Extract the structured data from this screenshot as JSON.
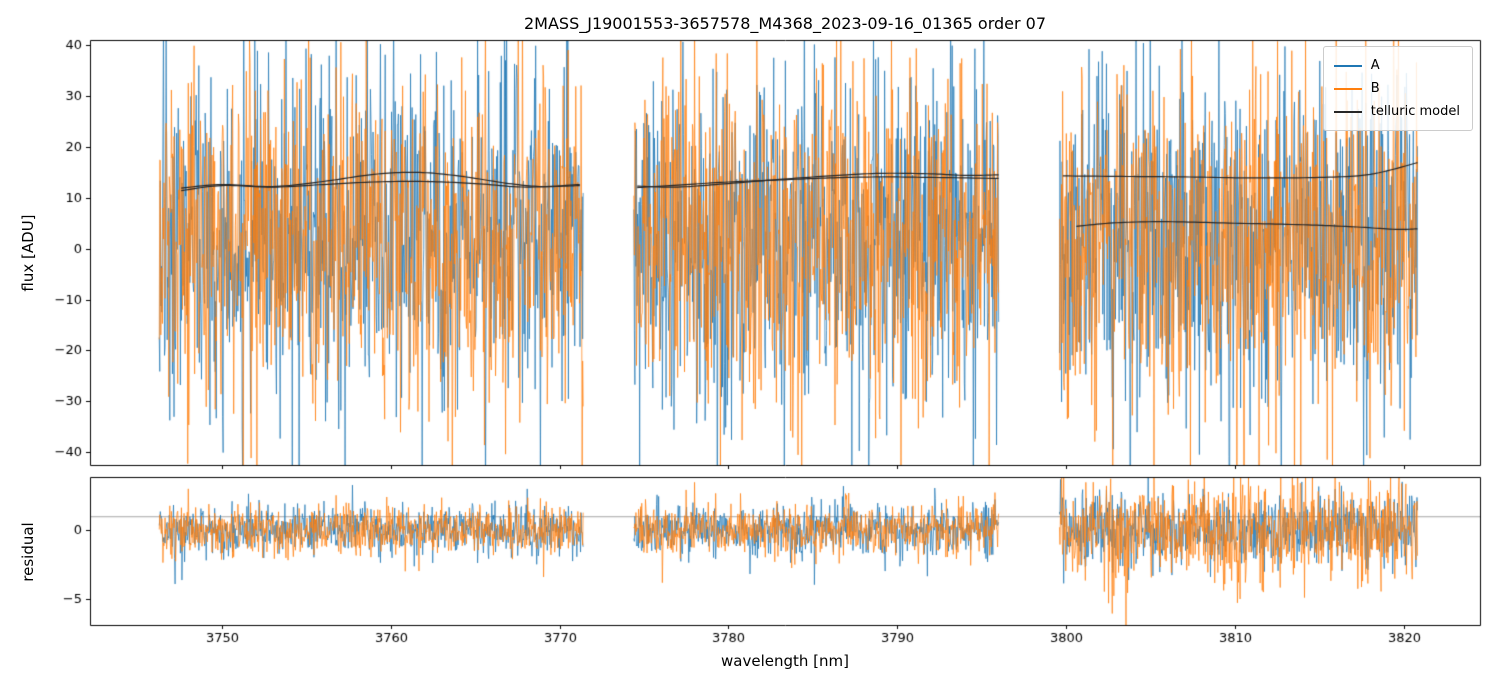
{
  "chart_data": {
    "type": "line",
    "title": "2MASS_J19001553-3657578_M4368_2023-09-16_01365  order 07",
    "xlabel": "wavelength [nm]",
    "xlim": [
      3742.2,
      3824.5
    ],
    "xticks": [
      3750,
      3760,
      3770,
      3780,
      3790,
      3800,
      3810,
      3820
    ],
    "segments_nm": [
      [
        3746.3,
        3771.4
      ],
      [
        3774.4,
        3796.0
      ],
      [
        3799.6,
        3820.8
      ]
    ],
    "panels": [
      {
        "name": "flux",
        "ylabel": "flux [ADU]",
        "ylim": [
          -42.5,
          41.0
        ],
        "yticks": [
          40,
          30,
          20,
          10,
          0,
          -10,
          -20,
          -30,
          -40
        ]
      },
      {
        "name": "residual",
        "ylabel": "residual",
        "ylim": [
          -6.9,
          3.9
        ],
        "yticks": [
          0,
          -5
        ],
        "hline": 1.0
      }
    ],
    "series": [
      {
        "name": "A",
        "color": "#1f77b4",
        "flux_center": 2,
        "flux_sd": 16.5,
        "residual_sd": [
          0.9,
          0.95,
          1.25
        ]
      },
      {
        "name": "B",
        "color": "#ff7f0e",
        "flux_center": 2,
        "flux_sd": 16.5,
        "residual_sd": [
          0.9,
          0.95,
          1.9
        ]
      },
      {
        "name": "telluric model",
        "color": "#262626"
      }
    ],
    "telluric_model": {
      "color": "#262626",
      "curves": [
        {
          "points": [
            [
              3747.6,
              11.9
            ],
            [
              3750,
              12.6
            ],
            [
              3753,
              12.2
            ],
            [
              3756,
              13.2
            ],
            [
              3759,
              14.6
            ],
            [
              3761.5,
              15.0
            ],
            [
              3764,
              14.3
            ],
            [
              3767,
              12.8
            ],
            [
              3769,
              12.2
            ],
            [
              3771.2,
              12.4
            ]
          ]
        },
        {
          "points": [
            [
              3747.6,
              11.4
            ],
            [
              3750,
              12.4
            ],
            [
              3753,
              12.1
            ],
            [
              3756,
              12.6
            ],
            [
              3759,
              13.1
            ],
            [
              3762,
              13.2
            ],
            [
              3765,
              12.8
            ],
            [
              3768,
              12.1
            ],
            [
              3771.2,
              12.6
            ]
          ]
        },
        {
          "points": [
            [
              3774.6,
              12.3
            ],
            [
              3777,
              12.1
            ],
            [
              3780,
              12.8
            ],
            [
              3783,
              13.6
            ],
            [
              3786,
              14.3
            ],
            [
              3789,
              14.8
            ],
            [
              3792,
              14.7
            ],
            [
              3794,
              14.4
            ],
            [
              3796,
              14.5
            ]
          ]
        },
        {
          "points": [
            [
              3774.6,
              12.0
            ],
            [
              3777,
              12.5
            ],
            [
              3780,
              13.1
            ],
            [
              3783,
              13.5
            ],
            [
              3786,
              13.9
            ],
            [
              3789,
              14.1
            ],
            [
              3792,
              14.0
            ],
            [
              3796,
              13.8
            ]
          ]
        },
        {
          "points": [
            [
              3799.8,
              14.3
            ],
            [
              3803,
              14.2
            ],
            [
              3807,
              14.1
            ],
            [
              3811,
              13.9
            ],
            [
              3815,
              14.0
            ],
            [
              3818,
              14.6
            ],
            [
              3820.8,
              16.9
            ]
          ]
        },
        {
          "points": [
            [
              3800.6,
              4.4
            ],
            [
              3803,
              5.1
            ],
            [
              3806,
              5.3
            ],
            [
              3810,
              5.0
            ],
            [
              3814,
              4.7
            ],
            [
              3817,
              4.3
            ],
            [
              3819.5,
              3.8
            ],
            [
              3820.8,
              3.9
            ]
          ]
        }
      ]
    }
  }
}
